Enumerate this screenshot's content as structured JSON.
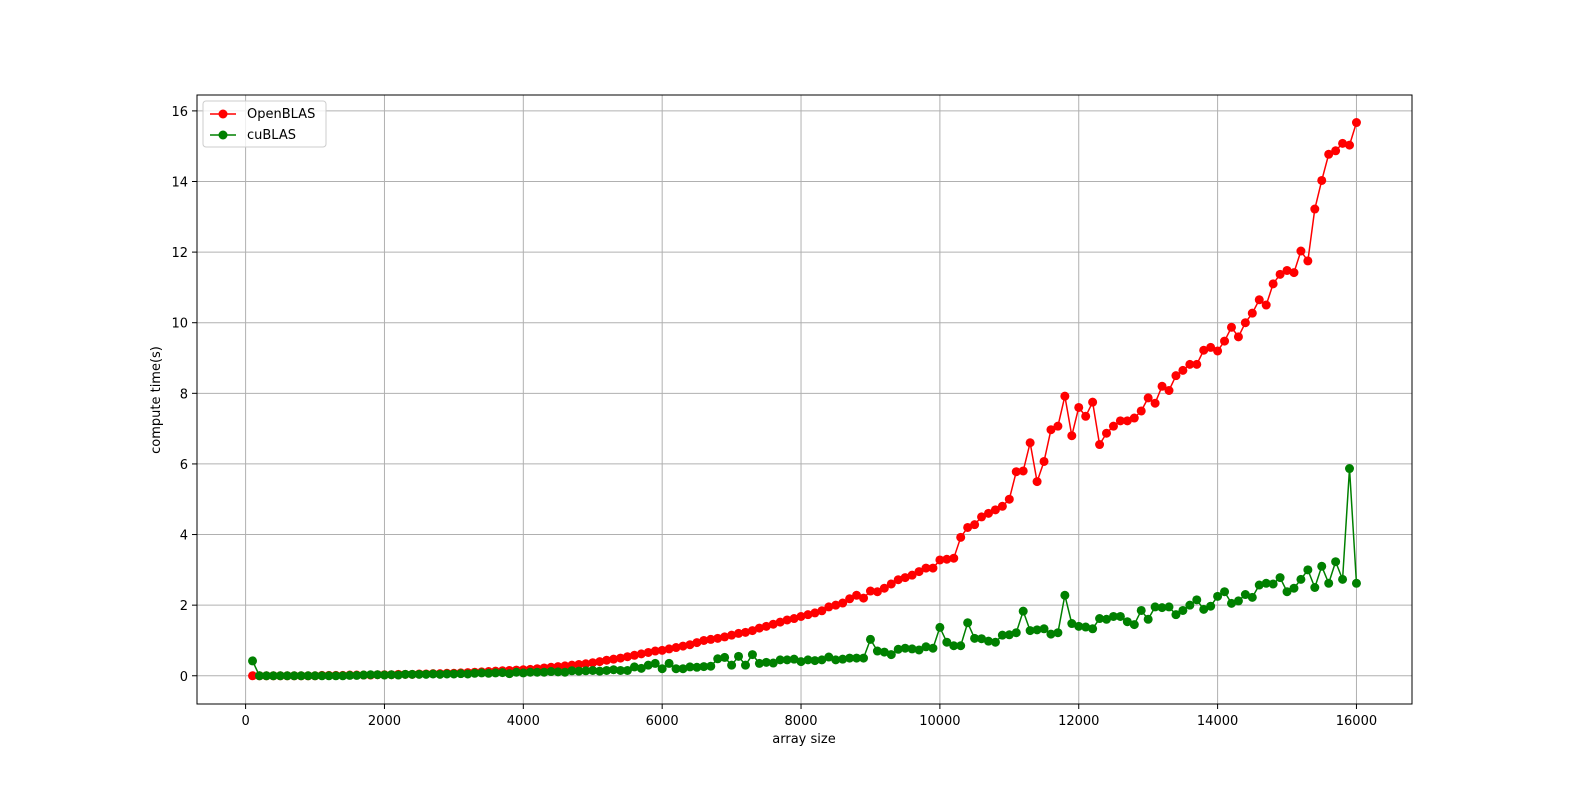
{
  "chart_data": {
    "type": "line",
    "title": "",
    "xlabel": "array size",
    "ylabel": "compute time(s)",
    "xlim": [
      -700,
      16800
    ],
    "ylim": [
      -0.8,
      16.45
    ],
    "xticks": [
      0,
      2000,
      4000,
      6000,
      8000,
      10000,
      12000,
      14000,
      16000
    ],
    "yticks": [
      0,
      2,
      4,
      6,
      8,
      10,
      12,
      14,
      16
    ],
    "grid": true,
    "legend_position": "top-left",
    "x": [
      100,
      200,
      300,
      400,
      500,
      600,
      700,
      800,
      900,
      1000,
      1100,
      1200,
      1300,
      1400,
      1500,
      1600,
      1700,
      1800,
      1900,
      2000,
      2100,
      2200,
      2300,
      2400,
      2500,
      2600,
      2700,
      2800,
      2900,
      3000,
      3100,
      3200,
      3300,
      3400,
      3500,
      3600,
      3700,
      3800,
      3900,
      4000,
      4100,
      4200,
      4300,
      4400,
      4500,
      4600,
      4700,
      4800,
      4900,
      5000,
      5100,
      5200,
      5300,
      5400,
      5500,
      5600,
      5700,
      5800,
      5900,
      6000,
      6100,
      6200,
      6300,
      6400,
      6500,
      6600,
      6700,
      6800,
      6900,
      7000,
      7100,
      7200,
      7300,
      7400,
      7500,
      7600,
      7700,
      7800,
      7900,
      8000,
      8100,
      8200,
      8300,
      8400,
      8500,
      8600,
      8700,
      8800,
      8900,
      9000,
      9100,
      9200,
      9300,
      9400,
      9500,
      9600,
      9700,
      9800,
      9900,
      10000,
      10100,
      10200,
      10300,
      10400,
      10500,
      10600,
      10700,
      10800,
      10900,
      11000,
      11100,
      11200,
      11300,
      11400,
      11500,
      11600,
      11700,
      11800,
      11900,
      12000,
      12100,
      12200,
      12300,
      12400,
      12500,
      12600,
      12700,
      12800,
      12900,
      13000,
      13100,
      13200,
      13300,
      13400,
      13500,
      13600,
      13700,
      13800,
      13900,
      14000,
      14100,
      14200,
      14300,
      14400,
      14500,
      14600,
      14700,
      14800,
      14900,
      15000,
      15100,
      15200,
      15300,
      15400,
      15500,
      15600,
      15700,
      15800,
      15900,
      16000
    ],
    "series": [
      {
        "name": "OpenBLAS",
        "color": "#ff0000",
        "marker": "circle",
        "values": [
          0.0,
          0.0,
          0.0,
          0.0,
          0.0,
          0.0,
          0.0,
          0.0,
          0.0,
          0.0,
          0.01,
          0.01,
          0.01,
          0.01,
          0.02,
          0.02,
          0.02,
          0.02,
          0.03,
          0.03,
          0.03,
          0.04,
          0.04,
          0.04,
          0.05,
          0.05,
          0.06,
          0.06,
          0.07,
          0.07,
          0.08,
          0.09,
          0.1,
          0.11,
          0.12,
          0.13,
          0.14,
          0.15,
          0.16,
          0.17,
          0.18,
          0.2,
          0.22,
          0.24,
          0.26,
          0.28,
          0.3,
          0.32,
          0.34,
          0.37,
          0.4,
          0.44,
          0.47,
          0.5,
          0.54,
          0.58,
          0.62,
          0.66,
          0.7,
          0.72,
          0.76,
          0.8,
          0.84,
          0.88,
          0.94,
          1.0,
          1.03,
          1.06,
          1.1,
          1.15,
          1.2,
          1.23,
          1.28,
          1.35,
          1.4,
          1.46,
          1.52,
          1.58,
          1.62,
          1.68,
          1.73,
          1.78,
          1.84,
          1.95,
          2.0,
          2.06,
          2.18,
          2.28,
          2.2,
          2.4,
          2.38,
          2.48,
          2.6,
          2.72,
          2.78,
          2.85,
          2.95,
          3.05,
          3.05,
          3.28,
          3.3,
          3.33,
          3.92,
          4.2,
          4.28,
          4.5,
          4.6,
          4.7,
          4.8,
          5.0,
          5.78,
          5.8,
          6.6,
          5.5,
          6.07,
          6.97,
          7.07,
          7.92,
          6.8,
          7.6,
          7.35,
          7.75,
          6.55,
          6.87,
          7.07,
          7.22,
          7.22,
          7.3,
          7.5,
          7.87,
          7.72,
          8.2,
          8.08,
          8.5,
          8.65,
          8.82,
          8.82,
          9.22,
          9.3,
          9.2,
          9.48,
          9.87,
          9.6,
          10.0,
          10.27,
          10.65,
          10.5,
          11.1,
          11.37,
          11.48,
          11.42,
          12.03,
          11.75,
          13.22,
          14.03,
          14.77,
          14.87,
          15.08,
          15.03,
          15.67
        ]
      },
      {
        "name": "cuBLAS",
        "color": "#008000",
        "marker": "circle",
        "values": [
          0.42,
          0.0,
          0.0,
          0.0,
          0.0,
          0.0,
          0.0,
          0.0,
          0.0,
          0.0,
          0.0,
          0.0,
          0.0,
          0.0,
          0.01,
          0.01,
          0.02,
          0.03,
          0.03,
          0.02,
          0.03,
          0.02,
          0.04,
          0.04,
          0.04,
          0.04,
          0.05,
          0.04,
          0.05,
          0.05,
          0.06,
          0.05,
          0.07,
          0.08,
          0.07,
          0.08,
          0.09,
          0.06,
          0.1,
          0.08,
          0.1,
          0.1,
          0.1,
          0.12,
          0.11,
          0.1,
          0.14,
          0.13,
          0.14,
          0.15,
          0.13,
          0.15,
          0.17,
          0.15,
          0.15,
          0.25,
          0.21,
          0.3,
          0.35,
          0.2,
          0.35,
          0.2,
          0.2,
          0.25,
          0.24,
          0.26,
          0.27,
          0.48,
          0.52,
          0.3,
          0.55,
          0.3,
          0.6,
          0.35,
          0.38,
          0.36,
          0.45,
          0.45,
          0.47,
          0.4,
          0.45,
          0.43,
          0.45,
          0.53,
          0.45,
          0.47,
          0.5,
          0.5,
          0.5,
          1.03,
          0.7,
          0.67,
          0.6,
          0.75,
          0.78,
          0.76,
          0.73,
          0.82,
          0.78,
          1.37,
          0.95,
          0.85,
          0.85,
          1.5,
          1.06,
          1.05,
          0.98,
          0.95,
          1.15,
          1.16,
          1.22,
          1.83,
          1.28,
          1.3,
          1.33,
          1.18,
          1.22,
          2.28,
          1.48,
          1.4,
          1.38,
          1.33,
          1.62,
          1.6,
          1.68,
          1.68,
          1.53,
          1.45,
          1.85,
          1.6,
          1.95,
          1.93,
          1.95,
          1.73,
          1.85,
          2.0,
          2.15,
          1.88,
          1.97,
          2.25,
          2.38,
          2.05,
          2.12,
          2.3,
          2.22,
          2.57,
          2.62,
          2.6,
          2.78,
          2.38,
          2.48,
          2.73,
          3.0,
          2.5,
          3.1,
          2.62,
          3.23,
          2.73,
          5.87,
          2.62
        ]
      }
    ]
  }
}
